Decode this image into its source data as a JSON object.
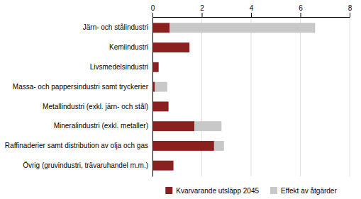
{
  "chart_data": {
    "type": "bar",
    "orientation": "horizontal",
    "stacked": true,
    "categories": [
      "Järn- och stålindustri",
      "Kemiindustri",
      "Livsmedelsindustri",
      "Massa- och pappersindustri samt tryckerier",
      "Metallindustri (exkl. järn- och stål)",
      "Mineralindustri (exkl. metaller)",
      "Raffinaderier samt distribution av olja och gas",
      "Övrig (gruvindustri, trävaruhandel m.m.)"
    ],
    "series": [
      {
        "name": "Kvarvarande utsläpp 2045",
        "color": "#8B2020",
        "values": [
          0.7,
          1.5,
          0.25,
          0.1,
          0.65,
          1.7,
          2.5,
          0.85
        ]
      },
      {
        "name": "Effekt av åtgärder",
        "color": "#C8C8C8",
        "values": [
          5.9,
          0.0,
          0.0,
          0.5,
          0.0,
          1.1,
          0.4,
          0.0
        ]
      }
    ],
    "xlim": [
      0,
      8
    ],
    "xticks": [
      0,
      2,
      4,
      6,
      8
    ],
    "grid": true,
    "legend": "bottom"
  }
}
